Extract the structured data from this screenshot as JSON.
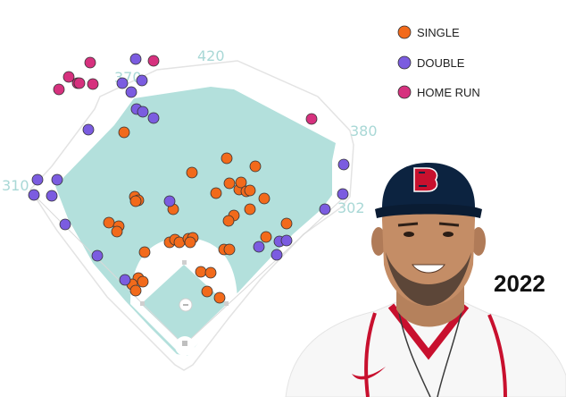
{
  "chart_data": {
    "type": "scatter",
    "title": "",
    "year_label": "2022",
    "distance_labels": [
      "420",
      "370",
      "380",
      "310",
      "302"
    ],
    "legend_placement": "top-right",
    "series": [
      {
        "name": "SINGLE",
        "color": "#f26a1b",
        "points": [
          [
            139,
            148
          ],
          [
            215,
            193
          ],
          [
            254,
            177
          ],
          [
            286,
            186
          ],
          [
            242,
            216
          ],
          [
            257,
            205
          ],
          [
            268,
            212
          ],
          [
            270,
            204
          ],
          [
            276,
            214
          ],
          [
            280,
            213
          ],
          [
            296,
            222
          ],
          [
            151,
            220
          ],
          [
            155,
            224
          ],
          [
            152,
            225
          ],
          [
            194,
            234
          ],
          [
            280,
            234
          ],
          [
            262,
            241
          ],
          [
            256,
            247
          ],
          [
            321,
            250
          ],
          [
            122,
            249
          ],
          [
            133,
            253
          ],
          [
            131,
            259
          ],
          [
            298,
            265
          ],
          [
            190,
            271
          ],
          [
            196,
            268
          ],
          [
            201,
            271
          ],
          [
            211,
            267
          ],
          [
            216,
            266
          ],
          [
            213,
            271
          ],
          [
            251,
            279
          ],
          [
            257,
            279
          ],
          [
            162,
            282
          ],
          [
            225,
            304
          ],
          [
            236,
            305
          ],
          [
            155,
            311
          ],
          [
            160,
            315
          ],
          [
            148,
            318
          ],
          [
            152,
            325
          ],
          [
            232,
            326
          ],
          [
            246,
            333
          ]
        ]
      },
      {
        "name": "DOUBLE",
        "color": "#7b5ce0",
        "points": [
          [
            152,
            66
          ],
          [
            137,
            93
          ],
          [
            159,
            90
          ],
          [
            147,
            103
          ],
          [
            153,
            122
          ],
          [
            160,
            125
          ],
          [
            172,
            132
          ],
          [
            99,
            145
          ],
          [
            42,
            201
          ],
          [
            64,
            201
          ],
          [
            38,
            218
          ],
          [
            58,
            219
          ],
          [
            73,
            251
          ],
          [
            190,
            225
          ],
          [
            385,
            184
          ],
          [
            384,
            217
          ],
          [
            364,
            234
          ],
          [
            290,
            276
          ],
          [
            313,
            270
          ],
          [
            321,
            269
          ],
          [
            310,
            285
          ],
          [
            109,
            286
          ],
          [
            140,
            313
          ]
        ]
      },
      {
        "name": "HOME RUN",
        "color": "#d6317e",
        "points": [
          [
            101,
            70
          ],
          [
            172,
            68
          ],
          [
            77,
            86
          ],
          [
            87,
            93
          ],
          [
            89,
            93
          ],
          [
            104,
            94
          ],
          [
            66,
            100
          ],
          [
            349,
            133
          ]
        ]
      }
    ]
  }
}
